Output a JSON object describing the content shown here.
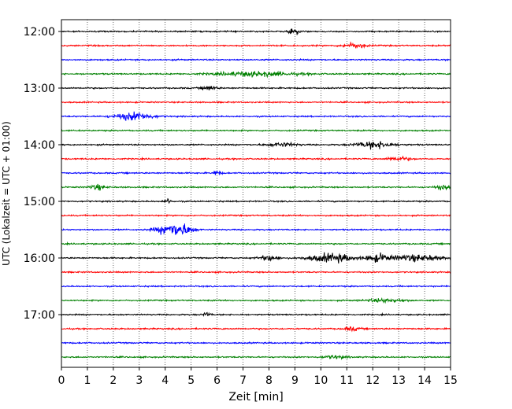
{
  "chart_data": {
    "type": "line",
    "chart_kind": "helicorder",
    "xlabel": "Zeit  [min]",
    "ylabel": "UTC (Lokalzeit = UTC + 01:00)",
    "xlim": [
      0,
      15
    ],
    "x_ticks": [
      0,
      1,
      2,
      3,
      4,
      5,
      6,
      7,
      8,
      9,
      10,
      11,
      12,
      13,
      14,
      15
    ],
    "x_tick_labels": [
      "0",
      "1",
      "2",
      "3",
      "4",
      "5",
      "6",
      "7",
      "8",
      "9",
      "10",
      "11",
      "12",
      "13",
      "14",
      "15"
    ],
    "y_tick_labels": [
      "12:00",
      "13:00",
      "14:00",
      "15:00",
      "16:00",
      "17:00"
    ],
    "trace_interval_minutes": 15,
    "grid": "vertical dotted at each minute",
    "colors": [
      "#000000",
      "#ff0000",
      "#0000ff",
      "#008000"
    ],
    "traces": [
      {
        "start": "12:00",
        "color": "#000000",
        "events": [
          {
            "t": 9.0,
            "amp": 2.2,
            "dur": 0.3
          }
        ]
      },
      {
        "start": "12:15",
        "color": "#ff0000",
        "events": [
          {
            "t": 11.3,
            "amp": 1.8,
            "dur": 0.6
          }
        ]
      },
      {
        "start": "12:30",
        "color": "#0000ff",
        "events": []
      },
      {
        "start": "12:45",
        "color": "#008000",
        "events": [
          {
            "t": 7.5,
            "amp": 1.6,
            "dur": 2.2
          }
        ]
      },
      {
        "start": "13:00",
        "color": "#000000",
        "events": [
          {
            "t": 5.7,
            "amp": 1.4,
            "dur": 0.4
          }
        ]
      },
      {
        "start": "13:15",
        "color": "#ff0000",
        "events": []
      },
      {
        "start": "13:30",
        "color": "#0000ff",
        "events": [
          {
            "t": 2.8,
            "amp": 2.6,
            "dur": 1.0
          }
        ]
      },
      {
        "start": "13:45",
        "color": "#008000",
        "events": []
      },
      {
        "start": "14:00",
        "color": "#000000",
        "events": [
          {
            "t": 12.1,
            "amp": 2.4,
            "dur": 1.0
          },
          {
            "t": 8.5,
            "amp": 1.3,
            "dur": 0.8
          }
        ]
      },
      {
        "start": "14:15",
        "color": "#ff0000",
        "events": [
          {
            "t": 13.0,
            "amp": 1.4,
            "dur": 0.6
          }
        ]
      },
      {
        "start": "14:30",
        "color": "#0000ff",
        "events": [
          {
            "t": 6.0,
            "amp": 1.8,
            "dur": 0.2
          }
        ]
      },
      {
        "start": "14:45",
        "color": "#008000",
        "events": [
          {
            "t": 1.4,
            "amp": 1.8,
            "dur": 0.4
          },
          {
            "t": 14.7,
            "amp": 1.4,
            "dur": 0.4
          }
        ]
      },
      {
        "start": "15:00",
        "color": "#000000",
        "events": [
          {
            "t": 4.1,
            "amp": 1.6,
            "dur": 0.2
          }
        ]
      },
      {
        "start": "15:15",
        "color": "#ff0000",
        "events": []
      },
      {
        "start": "15:30",
        "color": "#0000ff",
        "events": [
          {
            "t": 4.2,
            "amp": 3.5,
            "dur": 0.8
          },
          {
            "t": 4.7,
            "amp": 2.4,
            "dur": 0.6
          }
        ]
      },
      {
        "start": "15:45",
        "color": "#008000",
        "events": []
      },
      {
        "start": "16:00",
        "color": "#000000",
        "events": [
          {
            "t": 8.0,
            "amp": 1.8,
            "dur": 0.5
          },
          {
            "t": 10.4,
            "amp": 3.0,
            "dur": 1.2
          },
          {
            "t": 12.2,
            "amp": 2.6,
            "dur": 0.6
          },
          {
            "t": 13.7,
            "amp": 2.2,
            "dur": 1.4
          }
        ]
      },
      {
        "start": "16:15",
        "color": "#ff0000",
        "events": []
      },
      {
        "start": "16:30",
        "color": "#0000ff",
        "events": []
      },
      {
        "start": "16:45",
        "color": "#008000",
        "events": [
          {
            "t": 12.5,
            "amp": 1.2,
            "dur": 1.0
          }
        ]
      },
      {
        "start": "17:00",
        "color": "#000000",
        "events": [
          {
            "t": 5.6,
            "amp": 1.4,
            "dur": 0.2
          }
        ]
      },
      {
        "start": "17:15",
        "color": "#ff0000",
        "events": [
          {
            "t": 11.2,
            "amp": 1.3,
            "dur": 0.4
          }
        ]
      },
      {
        "start": "17:30",
        "color": "#0000ff",
        "events": []
      },
      {
        "start": "17:45",
        "color": "#008000",
        "events": [
          {
            "t": 10.5,
            "amp": 1.1,
            "dur": 0.6
          }
        ]
      }
    ]
  }
}
